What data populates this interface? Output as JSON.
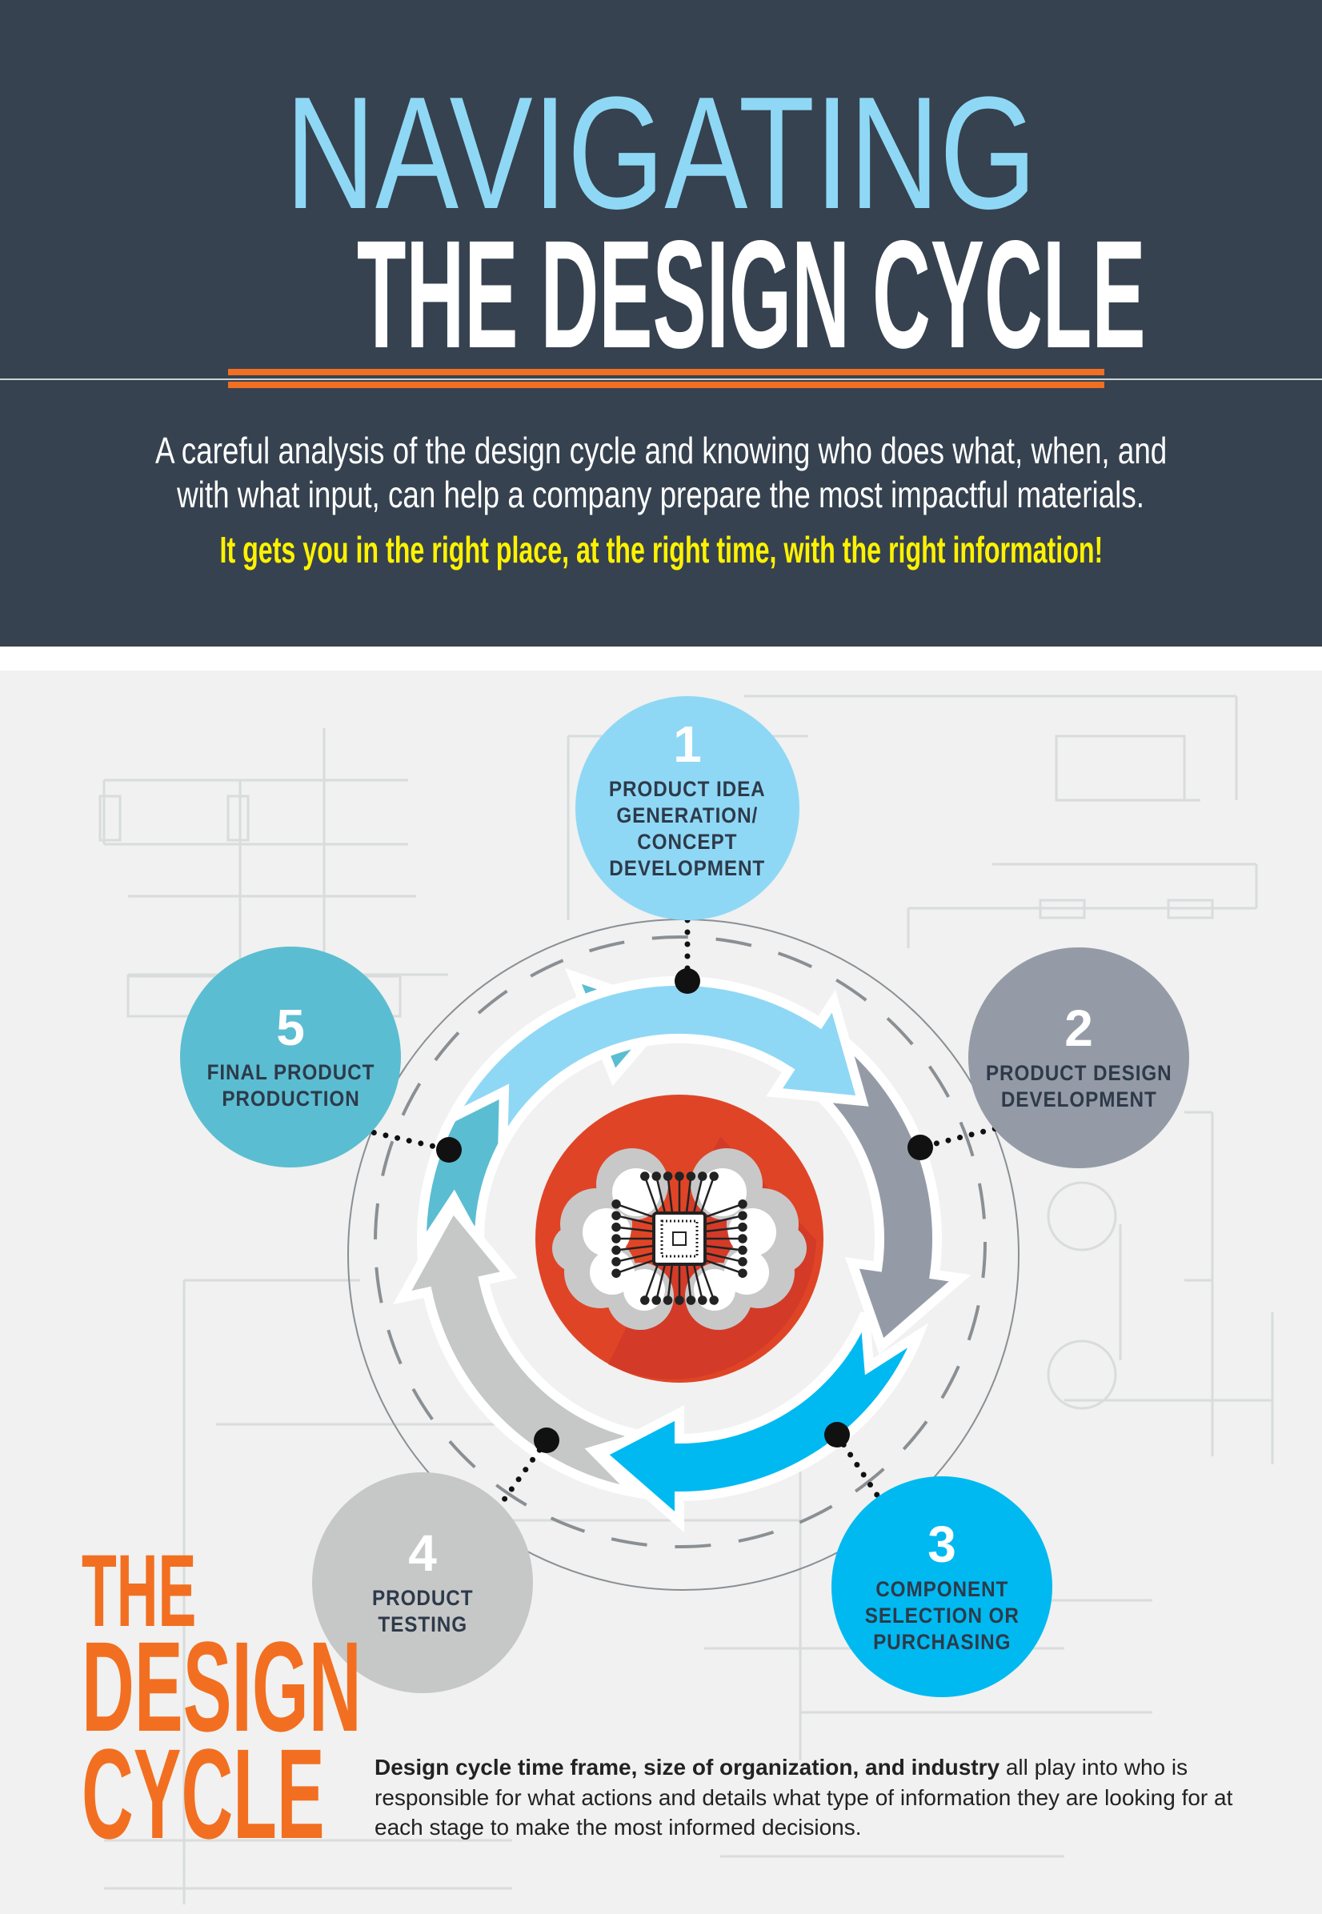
{
  "header": {
    "title_line1": "NAVIGATING",
    "title_line2": "THE DESIGN CYCLE",
    "intro_line1": "A careful analysis of the design cycle and knowing who does what, when, and",
    "intro_line2": "with what input, can help a company prepare the most impactful materials.",
    "highlight": "It gets you in the right place, at the right time, with the right information!"
  },
  "cycle": {
    "stages": [
      {
        "number": "1",
        "label": "PRODUCT IDEA\nGENERATION/\nCONCEPT\nDEVELOPMENT",
        "color": "#8fd8f5"
      },
      {
        "number": "2",
        "label": "PRODUCT DESIGN\nDEVELOPMENT",
        "color": "#959ba6"
      },
      {
        "number": "3",
        "label": "COMPONENT\nSELECTION OR\nPURCHASING",
        "color": "#00b9f1"
      },
      {
        "number": "4",
        "label": "PRODUCT\nTESTING",
        "color": "#c6c7c7"
      },
      {
        "number": "5",
        "label": "FINAL PRODUCT\nPRODUCTION",
        "color": "#5bbdd1"
      }
    ],
    "center_icon": "brain-chip-icon",
    "center_color": "#e04426"
  },
  "section_title": {
    "line1": "THE",
    "line2": "DESIGN",
    "line3": "CYCLE"
  },
  "footer_text": {
    "bold": "Design cycle time frame, size of organization, and industry",
    "rest": " all play into who is responsible for what actions and details what type of information they are looking for at each stage to make the most informed decisions."
  },
  "colors": {
    "header_bg": "#36424f",
    "accent_orange": "#f26f21",
    "title_blue": "#8fd8f5",
    "highlight_yellow": "#fff200"
  }
}
